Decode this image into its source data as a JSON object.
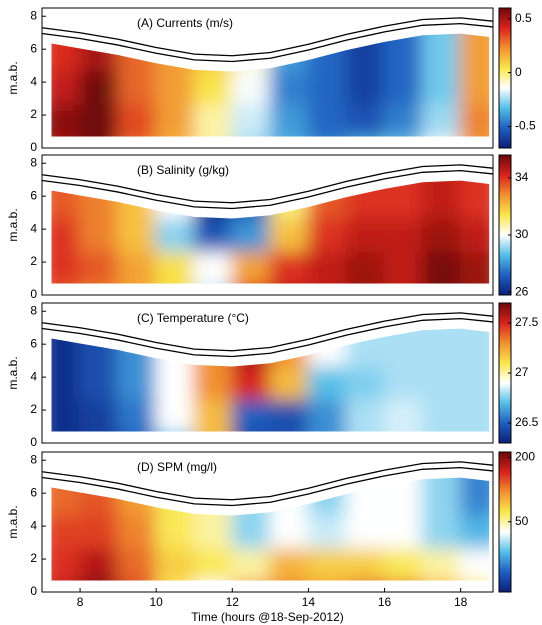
{
  "colormap": [
    "#0c1f7a",
    "#1f5fc0",
    "#55bfe8",
    "#ffffff",
    "#f9e64a",
    "#f19030",
    "#d8221e",
    "#6e0808"
  ],
  "chart_data": [
    {
      "type": "contour",
      "title": "(A) Currents (m/s)",
      "ylabel": "m.a.b.",
      "xlim": [
        7,
        18.85
      ],
      "ylim": [
        0,
        8.5
      ],
      "yticks": [
        0,
        2,
        4,
        6,
        8
      ],
      "clim": [
        -0.7,
        0.6
      ],
      "cticks": [
        0.5,
        0,
        -0.5
      ],
      "x": [
        7.5,
        8.5,
        9.5,
        10.5,
        11.5,
        12.5,
        13.5,
        14.5,
        15.5,
        16.5,
        17.5,
        18.5
      ],
      "y": [
        1,
        3,
        5,
        7
      ],
      "z": [
        [
          0.5,
          0.65,
          0.3,
          0.15,
          -0.05,
          -0.25,
          -0.35,
          -0.45,
          -0.35,
          -0.3,
          -0.15,
          0.2
        ],
        [
          0.55,
          0.7,
          0.35,
          0.2,
          -0.05,
          -0.2,
          -0.4,
          -0.5,
          -0.55,
          -0.45,
          -0.25,
          0.25
        ],
        [
          0.45,
          0.6,
          0.3,
          0.2,
          0.05,
          -0.15,
          -0.45,
          -0.5,
          -0.6,
          -0.5,
          -0.3,
          0.2
        ],
        [
          0.4,
          0.5,
          0.3,
          0.2,
          0.1,
          -0.1,
          -0.4,
          -0.5,
          -0.6,
          -0.5,
          -0.3,
          0.2
        ]
      ],
      "surface": [
        {
          "x": [
            7,
            8,
            9,
            10,
            11,
            12,
            13,
            14,
            15,
            16,
            17,
            18,
            18.85
          ],
          "y": [
            7.3,
            7.0,
            6.6,
            6.1,
            5.7,
            5.6,
            5.8,
            6.3,
            6.9,
            7.4,
            7.8,
            7.9,
            7.7
          ]
        },
        {
          "x": [
            7,
            8,
            9,
            10,
            11,
            12,
            13,
            14,
            15,
            16,
            17,
            18,
            18.85
          ],
          "y": [
            6.95,
            6.65,
            6.25,
            5.75,
            5.35,
            5.25,
            5.45,
            5.95,
            6.55,
            7.05,
            7.45,
            7.55,
            7.35
          ]
        }
      ]
    },
    {
      "type": "contour",
      "title": "(B) Salinity (g/kg)",
      "ylabel": "m.a.b.",
      "xlim": [
        7,
        18.85
      ],
      "ylim": [
        0,
        8.5
      ],
      "yticks": [
        0,
        2,
        4,
        6,
        8
      ],
      "clim": [
        25.8,
        35.6
      ],
      "cticks": [
        26,
        30,
        34
      ],
      "x": [
        7.5,
        8.5,
        9.5,
        10.5,
        11.5,
        12.5,
        13.5,
        14.5,
        15.5,
        16.5,
        17.5,
        18.5
      ],
      "y": [
        1,
        3,
        5,
        7
      ],
      "z": [
        [
          33.5,
          33,
          32.5,
          31.5,
          29.5,
          34,
          34.5,
          34.5,
          35,
          34.5,
          35.5,
          35
        ],
        [
          34,
          33.5,
          32.5,
          31.5,
          30,
          32.5,
          34,
          34.5,
          35,
          34.5,
          35.5,
          35
        ],
        [
          34,
          33,
          32,
          29,
          27,
          28,
          32,
          34,
          34.5,
          34.5,
          35,
          34.5
        ],
        [
          33.5,
          33,
          32,
          30,
          26,
          27,
          31,
          33.5,
          34,
          34,
          34.5,
          34
        ]
      ],
      "surface": [
        {
          "x": [
            7,
            8,
            9,
            10,
            11,
            12,
            13,
            14,
            15,
            16,
            17,
            18,
            18.85
          ],
          "y": [
            7.3,
            7.0,
            6.6,
            6.1,
            5.7,
            5.6,
            5.8,
            6.3,
            6.9,
            7.4,
            7.8,
            7.9,
            7.7
          ]
        },
        {
          "x": [
            7,
            8,
            9,
            10,
            11,
            12,
            13,
            14,
            15,
            16,
            17,
            18,
            18.85
          ],
          "y": [
            6.95,
            6.65,
            6.25,
            5.75,
            5.35,
            5.25,
            5.45,
            5.95,
            6.55,
            7.05,
            7.45,
            7.55,
            7.35
          ]
        }
      ]
    },
    {
      "type": "contour",
      "title": "(C) Temperature (°C)",
      "ylabel": "m.a.b.",
      "xlim": [
        7,
        18.85
      ],
      "ylim": [
        0,
        8.5
      ],
      "yticks": [
        0,
        2,
        4,
        6,
        8
      ],
      "clim": [
        26.3,
        27.7
      ],
      "cticks": [
        26.5,
        27,
        27.5
      ],
      "x": [
        7.5,
        8.5,
        9.5,
        10.5,
        11.5,
        12.5,
        13.5,
        14.5,
        15.5,
        16.5,
        17.5,
        18.5
      ],
      "y": [
        1,
        3,
        5,
        7
      ],
      "z": [
        [
          26.35,
          26.4,
          26.5,
          26.7,
          27.2,
          26.4,
          26.45,
          26.6,
          26.8,
          26.85,
          26.8,
          26.8
        ],
        [
          26.35,
          26.4,
          26.55,
          26.9,
          27.2,
          26.5,
          26.45,
          26.6,
          26.8,
          26.85,
          26.8,
          26.8
        ],
        [
          26.35,
          26.45,
          26.6,
          26.9,
          27.3,
          27.5,
          27.2,
          26.7,
          26.75,
          26.8,
          26.8,
          26.8
        ],
        [
          26.35,
          26.45,
          26.6,
          26.9,
          27.3,
          27.6,
          27.3,
          26.9,
          26.8,
          26.8,
          26.8,
          26.8
        ]
      ],
      "surface": [
        {
          "x": [
            7,
            8,
            9,
            10,
            11,
            12,
            13,
            14,
            15,
            16,
            17,
            18,
            18.85
          ],
          "y": [
            7.3,
            7.0,
            6.6,
            6.1,
            5.7,
            5.6,
            5.8,
            6.3,
            6.9,
            7.4,
            7.8,
            7.9,
            7.7
          ]
        },
        {
          "x": [
            7,
            8,
            9,
            10,
            11,
            12,
            13,
            14,
            15,
            16,
            17,
            18,
            18.85
          ],
          "y": [
            6.95,
            6.65,
            6.25,
            5.75,
            5.35,
            5.25,
            5.45,
            5.95,
            6.55,
            7.05,
            7.45,
            7.55,
            7.35
          ]
        }
      ]
    },
    {
      "type": "contour",
      "title": "(D) SPM (mg/l)",
      "ylabel": "m.a.b.",
      "xlabel": "Time (hours @18-Sep-2012)",
      "xlim": [
        7,
        18.85
      ],
      "xticks": [
        8,
        10,
        12,
        14,
        16,
        18
      ],
      "ylim": [
        0,
        8.5
      ],
      "yticks": [
        0,
        2,
        4,
        6,
        8
      ],
      "clim": [
        11,
        225
      ],
      "clog": true,
      "cticks": [
        50,
        200
      ],
      "x": [
        7.5,
        8.5,
        9.5,
        10.5,
        11.5,
        12.5,
        13.5,
        14.5,
        15.5,
        16.5,
        17.5,
        18.5
      ],
      "y": [
        1,
        3,
        5,
        7
      ],
      "z": [
        [
          160,
          220,
          130,
          60,
          40,
          90,
          100,
          90,
          120,
          110,
          80,
          60
        ],
        [
          140,
          170,
          110,
          70,
          60,
          50,
          80,
          70,
          70,
          60,
          50,
          40
        ],
        [
          130,
          130,
          100,
          60,
          50,
          30,
          40,
          35,
          40,
          40,
          30,
          25
        ],
        [
          110,
          120,
          90,
          60,
          50,
          30,
          40,
          30,
          40,
          40,
          30,
          20
        ]
      ],
      "surface": [
        {
          "x": [
            7,
            8,
            9,
            10,
            11,
            12,
            13,
            14,
            15,
            16,
            17,
            18,
            18.85
          ],
          "y": [
            7.3,
            7.0,
            6.6,
            6.1,
            5.7,
            5.6,
            5.8,
            6.3,
            6.9,
            7.4,
            7.8,
            7.9,
            7.7
          ]
        },
        {
          "x": [
            7,
            8,
            9,
            10,
            11,
            12,
            13,
            14,
            15,
            16,
            17,
            18,
            18.85
          ],
          "y": [
            6.95,
            6.65,
            6.25,
            5.75,
            5.35,
            5.25,
            5.45,
            5.95,
            6.55,
            7.05,
            7.45,
            7.55,
            7.35
          ]
        }
      ]
    }
  ]
}
